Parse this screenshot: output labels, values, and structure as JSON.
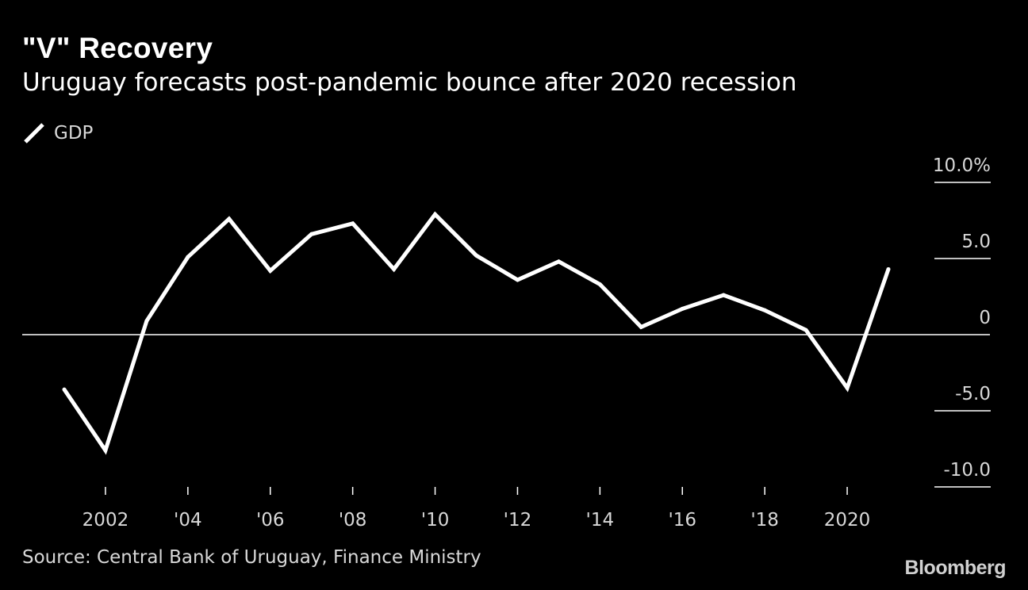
{
  "header": {
    "title": "\"V\" Recovery",
    "subtitle": "Uruguay forecasts post-pandemic bounce after 2020 recession"
  },
  "footer": {
    "source": "Source: Central Bank of Uruguay, Finance Ministry",
    "brand": "Bloomberg"
  },
  "colors": {
    "background": "#000000",
    "line": "#ffffff",
    "text": "#d8d8d8"
  },
  "chart_data": {
    "type": "line",
    "title": "\"V\" Recovery",
    "subtitle": "Uruguay forecasts post-pandemic bounce after 2020 recession",
    "xlabel": "",
    "ylabel": "",
    "legend": "top-left",
    "grid": false,
    "ylim": [
      -10,
      10
    ],
    "xlim": [
      2000.5,
      2022.5
    ],
    "y_ticks": [
      {
        "value": 10,
        "label": "10.0%"
      },
      {
        "value": 5,
        "label": "5.0"
      },
      {
        "value": 0,
        "label": "0"
      },
      {
        "value": -5,
        "label": "-5.0"
      },
      {
        "value": -10,
        "label": "-10.0"
      }
    ],
    "x_ticks": [
      {
        "value": 2002,
        "label": "2002"
      },
      {
        "value": 2004,
        "label": "'04"
      },
      {
        "value": 2006,
        "label": "'06"
      },
      {
        "value": 2008,
        "label": "'08"
      },
      {
        "value": 2010,
        "label": "'10"
      },
      {
        "value": 2012,
        "label": "'12"
      },
      {
        "value": 2014,
        "label": "'14"
      },
      {
        "value": 2016,
        "label": "'16"
      },
      {
        "value": 2018,
        "label": "'18"
      },
      {
        "value": 2020,
        "label": "2020"
      }
    ],
    "series": [
      {
        "name": "GDP",
        "x": [
          2001,
          2002,
          2003,
          2004,
          2005,
          2006,
          2007,
          2008,
          2009,
          2010,
          2011,
          2012,
          2013,
          2014,
          2015,
          2016,
          2017,
          2018,
          2019,
          2020,
          2021
        ],
        "values": [
          -3.6,
          -7.6,
          0.9,
          5.1,
          7.6,
          4.2,
          6.6,
          7.3,
          4.3,
          7.9,
          5.2,
          3.6,
          4.8,
          3.3,
          0.5,
          1.7,
          2.6,
          1.6,
          0.3,
          -3.5,
          4.3
        ]
      }
    ]
  }
}
